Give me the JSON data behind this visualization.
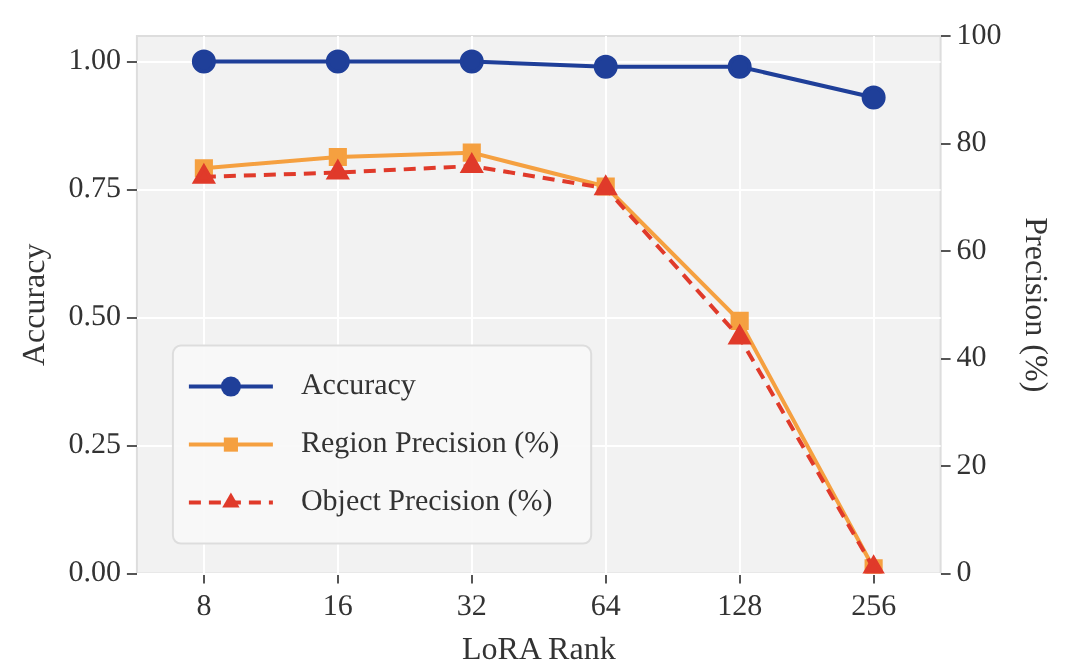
{
  "chart_data": {
    "type": "line",
    "xlabel": "LoRA Rank",
    "ylabel": "Accuracy",
    "y2label": "Precision (%)",
    "categories": [
      "8",
      "16",
      "32",
      "64",
      "128",
      "256"
    ],
    "series": [
      {
        "name": "Accuracy",
        "color": "#1f3f99",
        "values": [
          1.0,
          1.0,
          1.0,
          0.99,
          0.99,
          0.93
        ],
        "marker": "circle",
        "line_style": "solid"
      },
      {
        "name": "Region Precision (%)",
        "color": "#f5a040",
        "values": [
          75.4,
          77.5,
          78.3,
          72,
          47,
          1
        ],
        "axis": "y2",
        "marker": "square",
        "line_style": "solid"
      },
      {
        "name": "Object Precision (%)",
        "color": "#e03a2a",
        "values": [
          73.8,
          74.6,
          75.8,
          71.7,
          43.9,
          1
        ],
        "axis": "y2",
        "marker": "triangle",
        "line_style": "dashed"
      }
    ],
    "ylim": [
      0,
      1.05
    ],
    "yticks": [
      {
        "value": 0,
        "label": "0.00"
      },
      {
        "value": 0.25,
        "label": "0.25"
      },
      {
        "value": 0.5,
        "label": "0.50"
      },
      {
        "value": 0.75,
        "label": "0.75"
      },
      {
        "value": 1,
        "label": "1.00"
      }
    ],
    "y2lim": [
      0,
      100
    ],
    "y2ticks": [
      0,
      20,
      40,
      60,
      80,
      100
    ],
    "grid": true,
    "legend": "lower left"
  }
}
